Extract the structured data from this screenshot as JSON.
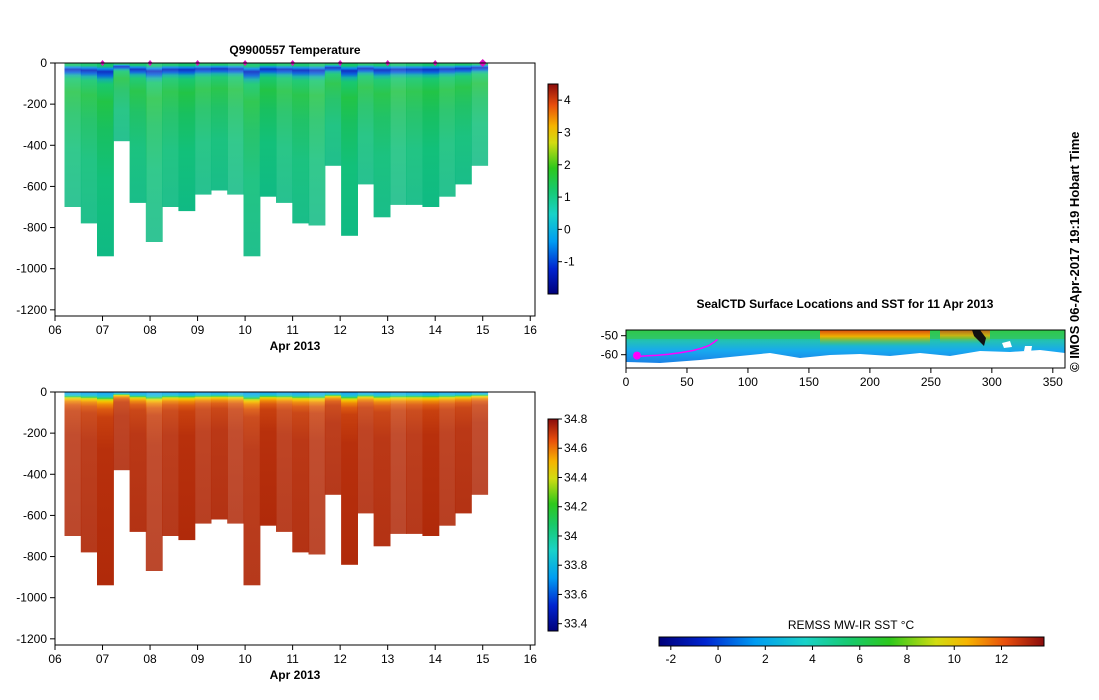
{
  "credit": "© IMOS 06-Apr-2017 19:19 Hobart Time",
  "chart_data": [
    {
      "type": "heatmap",
      "title": "Q9900557  Temperature",
      "xlabel": "Apr 2013",
      "ylabel": "",
      "xlim": [
        6,
        16.1
      ],
      "ylim": [
        -1230,
        0
      ],
      "x_ticks": [
        "06",
        "07",
        "08",
        "09",
        "10",
        "11",
        "12",
        "13",
        "14",
        "15",
        "16"
      ],
      "y_ticks": [
        "0",
        "-200",
        "-400",
        "-600",
        "-800",
        "-1000",
        "-1200"
      ],
      "profile_times": [
        7.0,
        8.0,
        9.0,
        10.0,
        11.0,
        12.0,
        13.0,
        14.0,
        15.0
      ],
      "last_profile_time": 15.0,
      "profile_bottoms": [
        -700,
        -780,
        -940,
        -380,
        -680,
        -870,
        -700,
        -720,
        -640,
        -620,
        -640,
        -940,
        -650,
        -680,
        -780,
        -790,
        -500,
        -840,
        -590,
        -750,
        -690,
        -690,
        -700,
        -650,
        -590,
        -500
      ],
      "colorbar": {
        "min": -2.0,
        "max": 4.5,
        "ticks": [
          "-1",
          "0",
          "1",
          "2",
          "3",
          "4"
        ]
      }
    },
    {
      "type": "heatmap",
      "title": "",
      "xlabel": "Apr 2013",
      "ylabel": "",
      "xlim": [
        6,
        16.1
      ],
      "ylim": [
        -1230,
        0
      ],
      "x_ticks": [
        "06",
        "07",
        "08",
        "09",
        "10",
        "11",
        "12",
        "13",
        "14",
        "15",
        "16"
      ],
      "y_ticks": [
        "0",
        "-200",
        "-400",
        "-600",
        "-800",
        "-1000",
        "-1200"
      ],
      "profile_bottoms": [
        -700,
        -780,
        -940,
        -380,
        -680,
        -870,
        -700,
        -720,
        -640,
        -620,
        -640,
        -940,
        -650,
        -680,
        -780,
        -790,
        -500,
        -840,
        -590,
        -750,
        -690,
        -690,
        -700,
        -650,
        -590,
        -500
      ],
      "colorbar": {
        "min": 33.35,
        "max": 34.8,
        "ticks": [
          "33.4",
          "33.6",
          "33.8",
          "34",
          "34.2",
          "34.4",
          "34.6",
          "34.8"
        ]
      }
    },
    {
      "type": "heatmap",
      "title": "SealCTD Surface Locations and SST for 11 Apr 2013",
      "xlabel": "",
      "ylabel": "",
      "xlim": [
        0,
        360
      ],
      "ylim": [
        -67,
        -47
      ],
      "x_ticks": [
        "0",
        "50",
        "100",
        "150",
        "200",
        "250",
        "300",
        "350"
      ],
      "y_ticks": [
        "-50",
        "-60"
      ],
      "track": {
        "lon": [
          9,
          12,
          18,
          26,
          35,
          45,
          55,
          62,
          68,
          72,
          75
        ],
        "lat": [
          -60.5,
          -60.8,
          -60.6,
          -60.3,
          -59.8,
          -58.9,
          -57.8,
          -56.6,
          -55.2,
          -53.5,
          -52.0
        ]
      },
      "colorbar": {
        "label": "REMSS MW-IR SST °C",
        "min": -2.5,
        "max": 13.8,
        "ticks": [
          "-2",
          "0",
          "2",
          "4",
          "6",
          "8",
          "10",
          "12"
        ]
      }
    }
  ]
}
